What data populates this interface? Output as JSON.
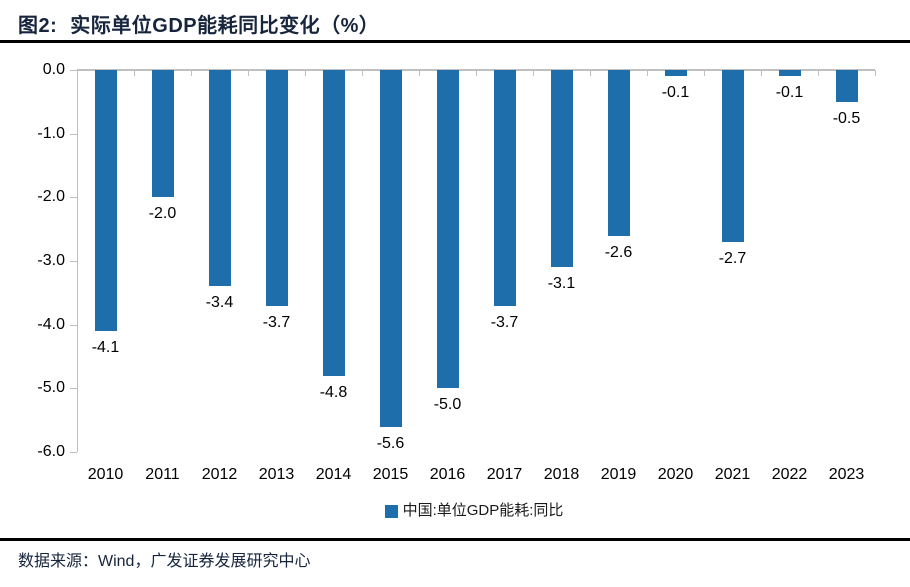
{
  "header": {
    "figure_label": "图2:",
    "title": "实际单位GDP能耗同比变化（%）"
  },
  "footer": {
    "source": "数据来源：Wind，广发证券发展研究中心"
  },
  "colors": {
    "bar": "#1F6EAC",
    "title_text": "#16243C",
    "axis": "#BFBFBF",
    "divider": "#000000",
    "tick_label": "#000000"
  },
  "chart_data": {
    "type": "bar",
    "title": "实际单位GDP能耗同比变化（%）",
    "categories": [
      "2010",
      "2011",
      "2012",
      "2013",
      "2014",
      "2015",
      "2016",
      "2017",
      "2018",
      "2019",
      "2020",
      "2021",
      "2022",
      "2023"
    ],
    "series": [
      {
        "name": "中国:单位GDP能耗:同比",
        "values": [
          -4.1,
          -2.0,
          -3.4,
          -3.7,
          -4.8,
          -5.6,
          -5.0,
          -3.7,
          -3.1,
          -2.6,
          -0.1,
          -2.7,
          -0.1,
          -0.5
        ]
      }
    ],
    "xlabel": "",
    "ylabel": "",
    "ylim": [
      -6.0,
      0.0
    ],
    "y_tick_step": 1.0,
    "y_ticks": [
      "0.0",
      "-1.0",
      "-2.0",
      "-3.0",
      "-4.0",
      "-5.0",
      "-6.0"
    ],
    "grid": false,
    "data_labels": true,
    "data_label_format": "one_decimal",
    "legend_position": "bottom-center"
  }
}
